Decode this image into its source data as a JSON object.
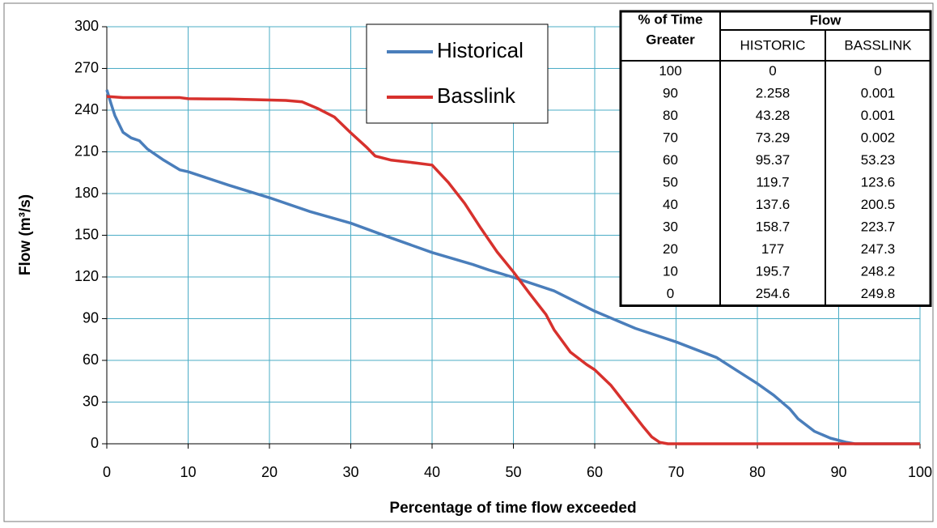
{
  "chart_data": {
    "type": "line",
    "x_label": "Percentage of time flow exceeded",
    "y_label": "Flow (m³/s)",
    "xlim": [
      0,
      100
    ],
    "xticks": [
      0,
      10,
      20,
      30,
      40,
      50,
      60,
      70,
      80,
      90,
      100
    ],
    "ylim": [
      0,
      300
    ],
    "yticks": [
      0,
      30,
      60,
      90,
      120,
      150,
      180,
      210,
      240,
      270,
      300
    ],
    "grid": true,
    "series": [
      {
        "name": "Historical",
        "color": "#4a7ebb",
        "x": [
          0,
          0.5,
          1,
          2,
          3,
          4,
          5,
          7,
          9,
          10,
          15,
          20,
          25,
          30,
          35,
          40,
          45,
          47,
          50,
          55,
          60,
          65,
          70,
          75,
          80,
          82,
          84,
          85,
          87,
          89,
          91,
          92,
          100
        ],
        "values": [
          254.6,
          245,
          236,
          224,
          220,
          218,
          212,
          204,
          197,
          195.7,
          186,
          177,
          167,
          158.7,
          148,
          137.6,
          129,
          125,
          119.7,
          110,
          95.37,
          83,
          73.29,
          62,
          43.28,
          35,
          25,
          18,
          9,
          4,
          1,
          0,
          0
        ]
      },
      {
        "name": "Basslink",
        "color": "#d7312d",
        "x": [
          0,
          2,
          5,
          9,
          10,
          15,
          20,
          22,
          24,
          26,
          28,
          30,
          32,
          33,
          35,
          38,
          40,
          42,
          44,
          46,
          48,
          50,
          52,
          54,
          55,
          57,
          59,
          60,
          62,
          64,
          66,
          67,
          68,
          69,
          70,
          100
        ],
        "values": [
          249.8,
          249,
          249,
          249,
          248.2,
          248,
          247.3,
          247,
          246,
          241,
          235,
          223.7,
          213,
          207,
          204,
          202,
          200.5,
          188,
          173,
          155,
          138,
          123.6,
          108,
          93,
          82,
          66,
          57,
          53.23,
          42,
          27,
          12,
          5,
          1,
          0,
          0.002,
          0
        ]
      }
    ]
  },
  "table": {
    "header": [
      [
        "% of Time",
        "Flow"
      ],
      [
        "Greater",
        "HISTORIC",
        "BASSLINK"
      ]
    ],
    "rows": [
      [
        100,
        0,
        0
      ],
      [
        90,
        2.258,
        0.001
      ],
      [
        80,
        43.28,
        0.001
      ],
      [
        70,
        73.29,
        0.002
      ],
      [
        60,
        95.37,
        53.23
      ],
      [
        50,
        119.7,
        123.6
      ],
      [
        40,
        137.6,
        200.5
      ],
      [
        30,
        158.7,
        223.7
      ],
      [
        20,
        177,
        247.3
      ],
      [
        10,
        195.7,
        248.2
      ],
      [
        0,
        254.6,
        249.8
      ]
    ]
  }
}
